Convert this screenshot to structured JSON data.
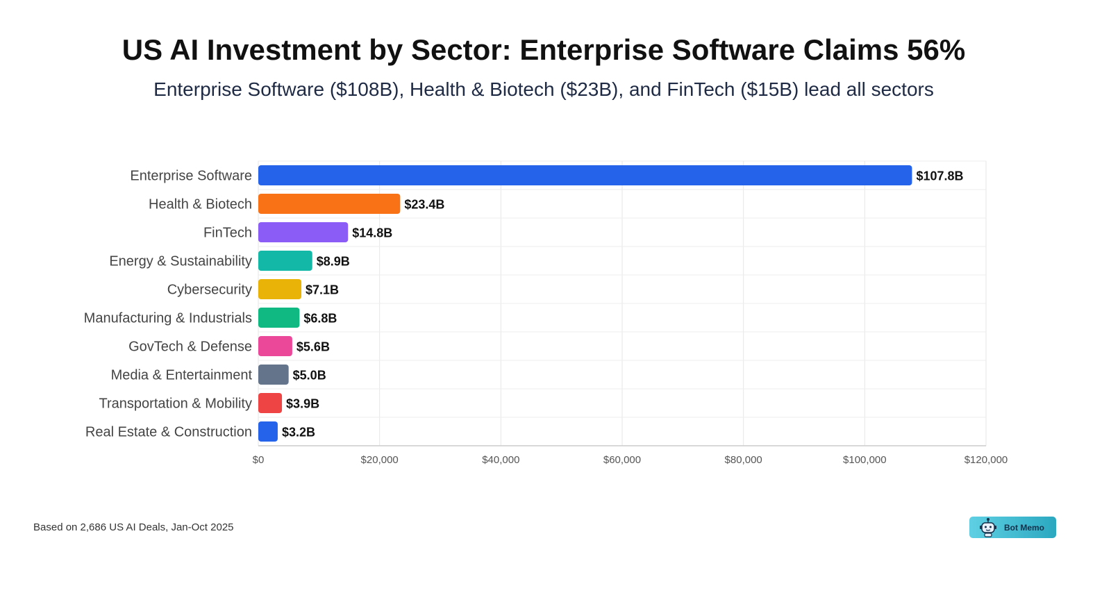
{
  "chart_data": {
    "type": "bar",
    "orientation": "horizontal",
    "title": "US AI Investment by Sector: Enterprise Software Claims 56%",
    "subtitle": "Enterprise Software ($108B), Health & Biotech ($23B), and FinTech ($15B) lead all sectors",
    "categories": [
      "Enterprise Software",
      "Health & Biotech",
      "FinTech",
      "Energy & Sustainability",
      "Cybersecurity",
      "Manufacturing & Industrials",
      "GovTech & Defense",
      "Media & Entertainment",
      "Transportation & Mobility",
      "Real Estate & Construction"
    ],
    "values": [
      107800,
      23400,
      14800,
      8900,
      7100,
      6800,
      5600,
      5000,
      3900,
      3200
    ],
    "data_labels": [
      "$107.8B",
      "$23.4B",
      "$14.8B",
      "$8.9B",
      "$7.1B",
      "$6.8B",
      "$5.6B",
      "$5.0B",
      "$3.9B",
      "$3.2B"
    ],
    "colors": [
      "#2563eb",
      "#f97316",
      "#8b5cf6",
      "#14b8a6",
      "#eab308",
      "#10b981",
      "#ec4899",
      "#64748b",
      "#ef4444",
      "#2563eb"
    ],
    "xlim": [
      0,
      120000
    ],
    "xticks": [
      "$0",
      "$20,000",
      "$40,000",
      "$60,000",
      "$80,000",
      "$100,000",
      "$120,000"
    ],
    "xtick_values": [
      0,
      20000,
      40000,
      60000,
      80000,
      100000,
      120000
    ],
    "grid": true,
    "xlabel": "",
    "ylabel": ""
  },
  "footnote": "Based on 2,686 US AI Deals, Jan-Oct 2025",
  "logo": {
    "text": "Bot Memo"
  }
}
